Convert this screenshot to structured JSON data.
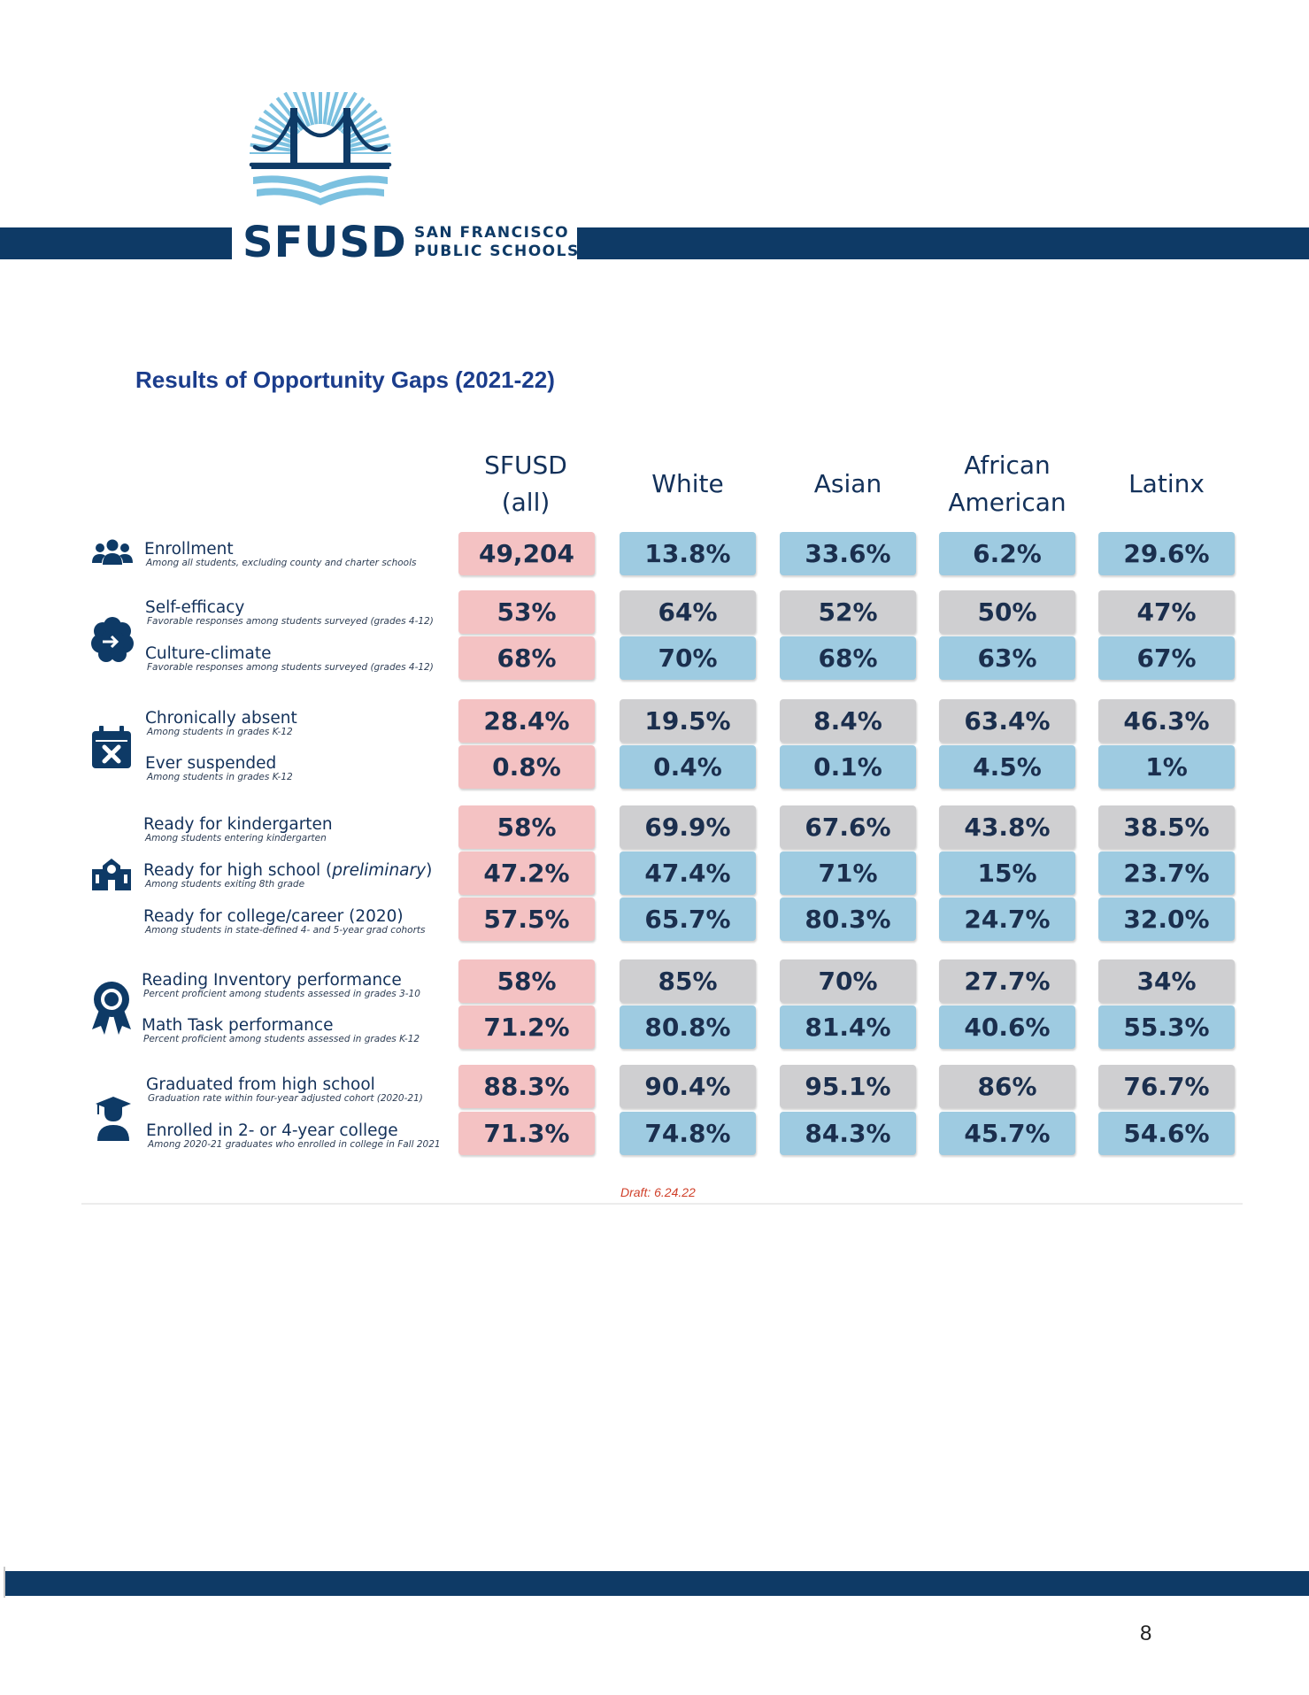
{
  "logo": {
    "wordmark": "SFUSD",
    "sub_line1": "SAN FRANCISCO",
    "sub_line2": "PUBLIC SCHOOLS",
    "navy": "#0e3a66",
    "sky": "#7cc1e0"
  },
  "title": "Results of Opportunity Gaps (2021-22)",
  "columns": [
    {
      "line1": "SFUSD",
      "line2": "(all)"
    },
    {
      "line1": "White",
      "line2": ""
    },
    {
      "line1": "Asian",
      "line2": ""
    },
    {
      "line1": "African",
      "line2": "American"
    },
    {
      "line1": "Latinx",
      "line2": ""
    }
  ],
  "colors": {
    "pink": "#f4c2c3",
    "blue": "#9ecbe1",
    "gray": "#cfcfd1",
    "navy": "#0e3a66"
  },
  "groups": [
    {
      "icon": "people-group-icon"
    },
    {
      "icon": "head-brain-icon"
    },
    {
      "icon": "calendar-x-icon"
    },
    {
      "icon": "school-building-icon"
    },
    {
      "icon": "award-ribbon-icon"
    },
    {
      "icon": "graduate-icon"
    }
  ],
  "rows": [
    {
      "label": "Enrollment",
      "note": "Among all students, excluding county and charter schools",
      "values": [
        "49,204",
        "13.8%",
        "33.6%",
        "6.2%",
        "29.6%"
      ],
      "tone": "blue"
    },
    {
      "label": "Self-efficacy",
      "note": "Favorable responses among students surveyed (grades 4-12)",
      "values": [
        "53%",
        "64%",
        "52%",
        "50%",
        "47%"
      ],
      "tone": "gray"
    },
    {
      "label": "Culture-climate",
      "note": "Favorable responses among students surveyed (grades 4-12)",
      "values": [
        "68%",
        "70%",
        "68%",
        "63%",
        "67%"
      ],
      "tone": "blue"
    },
    {
      "label": "Chronically absent",
      "note": "Among students in grades K-12",
      "values": [
        "28.4%",
        "19.5%",
        "8.4%",
        "63.4%",
        "46.3%"
      ],
      "tone": "gray"
    },
    {
      "label": "Ever suspended",
      "note": "Among students in grades K-12",
      "values": [
        "0.8%",
        "0.4%",
        "0.1%",
        "4.5%",
        "1%"
      ],
      "tone": "blue"
    },
    {
      "label": "Ready for kindergarten",
      "note": "Among students entering kindergarten",
      "values": [
        "58%",
        "69.9%",
        "67.6%",
        "43.8%",
        "38.5%"
      ],
      "tone": "gray"
    },
    {
      "label": "Ready for high school (",
      "label_em": "preliminary",
      "label_end": ")",
      "note": "Among students exiting 8th grade",
      "values": [
        "47.2%",
        "47.4%",
        "71%",
        "15%",
        "23.7%"
      ],
      "tone": "blue"
    },
    {
      "label": "Ready for college/career (2020)",
      "note": "Among students in state-defined 4- and 5-year grad cohorts",
      "values": [
        "57.5%",
        "65.7%",
        "80.3%",
        "24.7%",
        "32.0%"
      ],
      "tone": "blue"
    },
    {
      "label": "Reading Inventory performance",
      "note": "Percent proficient among students assessed in grades 3-10",
      "values": [
        "58%",
        "85%",
        "70%",
        "27.7%",
        "34%"
      ],
      "tone": "gray"
    },
    {
      "label": "Math Task performance",
      "note": "Percent proficient among students assessed in grades K-12",
      "values": [
        "71.2%",
        "80.8%",
        "81.4%",
        "40.6%",
        "55.3%"
      ],
      "tone": "blue"
    },
    {
      "label": "Graduated from high school",
      "note": "Graduation rate within four-year adjusted cohort (2020-21)",
      "values": [
        "88.3%",
        "90.4%",
        "95.1%",
        "86%",
        "76.7%"
      ],
      "tone": "gray"
    },
    {
      "label": "Enrolled in 2- or 4-year college",
      "note": "Among 2020-21 graduates who enrolled in college in Fall 2021",
      "values": [
        "71.3%",
        "74.8%",
        "84.3%",
        "45.7%",
        "54.6%"
      ],
      "tone": "blue"
    }
  ],
  "draft": "Draft: 6.24.22",
  "page_number": "8"
}
